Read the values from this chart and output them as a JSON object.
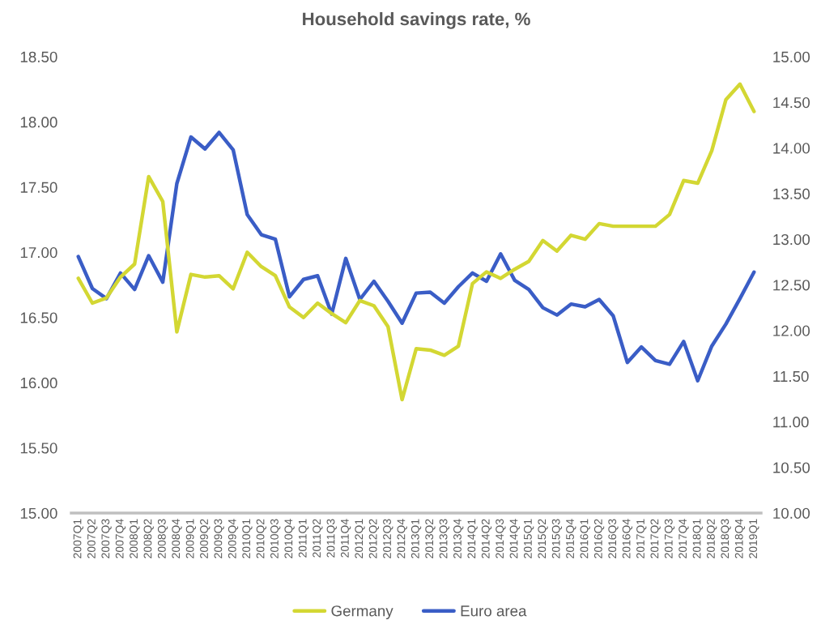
{
  "chart_data": {
    "type": "line",
    "title": "Household savings rate, %",
    "categories": [
      "2007Q1",
      "2007Q2",
      "2007Q3",
      "2007Q4",
      "2008Q1",
      "2008Q2",
      "2008Q3",
      "2008Q4",
      "2009Q1",
      "2009Q2",
      "2009Q3",
      "2009Q4",
      "2010Q1",
      "2010Q2",
      "2010Q3",
      "2010Q4",
      "2011Q1",
      "2011Q2",
      "2011Q3",
      "2011Q4",
      "2012Q1",
      "2012Q2",
      "2012Q3",
      "2012Q4",
      "2013Q1",
      "2013Q2",
      "2013Q3",
      "2013Q4",
      "2014Q1",
      "2014Q2",
      "2014Q3",
      "2014Q4",
      "2015Q1",
      "2015Q2",
      "2015Q3",
      "2015Q4",
      "2016Q1",
      "2016Q2",
      "2016Q3",
      "2016Q4",
      "2017Q1",
      "2017Q2",
      "2017Q3",
      "2017Q4",
      "2018Q1",
      "2018Q2",
      "2018Q3",
      "2018Q4",
      "2019Q1"
    ],
    "series": [
      {
        "name": "Germany",
        "color": "#d3d733",
        "values": [
          16.8,
          16.61,
          16.65,
          16.81,
          16.91,
          17.58,
          17.39,
          16.39,
          16.83,
          16.81,
          16.82,
          16.72,
          17.0,
          16.89,
          16.82,
          16.58,
          16.5,
          16.61,
          16.53,
          16.46,
          16.63,
          16.59,
          16.43,
          15.87,
          16.26,
          16.25,
          16.21,
          16.28,
          16.76,
          16.85,
          16.8,
          16.87,
          16.93,
          17.09,
          17.01,
          17.13,
          17.1,
          17.22,
          17.2,
          17.2,
          17.2,
          17.2,
          17.29,
          17.55,
          17.53,
          17.78,
          18.17,
          18.29,
          18.08
        ]
      },
      {
        "name": "Euro area",
        "color": "#3a5dc6",
        "axis": "y2",
        "values": [
          12.81,
          12.46,
          12.35,
          12.63,
          12.45,
          12.82,
          12.53,
          13.61,
          14.12,
          13.99,
          14.17,
          13.98,
          13.27,
          13.05,
          13.0,
          12.37,
          12.56,
          12.6,
          12.18,
          12.79,
          12.34,
          12.54,
          12.32,
          12.08,
          12.41,
          12.42,
          12.3,
          12.48,
          12.63,
          12.54,
          12.84,
          12.55,
          12.45,
          12.25,
          12.17,
          12.29,
          12.26,
          12.34,
          12.16,
          11.65,
          11.82,
          11.67,
          11.63,
          11.88,
          11.45,
          11.83,
          12.07,
          12.35,
          12.64
        ]
      }
    ],
    "ylim": [
      15,
      18.5
    ],
    "yticks": [
      {
        "value": 15,
        "label": "15.00"
      },
      {
        "value": 15.5,
        "label": "15.50"
      },
      {
        "value": 16,
        "label": "16.00"
      },
      {
        "value": 16.5,
        "label": "16.50"
      },
      {
        "value": 17,
        "label": "17.00"
      },
      {
        "value": 17.5,
        "label": "17.50"
      },
      {
        "value": 18,
        "label": "18.00"
      },
      {
        "value": 18.5,
        "label": "18.50"
      }
    ],
    "y2lim": [
      10,
      15
    ],
    "y2ticks": [
      {
        "value": 10,
        "label": "10.00"
      },
      {
        "value": 10.5,
        "label": "10.50"
      },
      {
        "value": 11,
        "label": "11.00"
      },
      {
        "value": 11.5,
        "label": "11.50"
      },
      {
        "value": 12,
        "label": "12.00"
      },
      {
        "value": 12.5,
        "label": "12.50"
      },
      {
        "value": 13,
        "label": "13.00"
      },
      {
        "value": 13.5,
        "label": "13.50"
      },
      {
        "value": 14,
        "label": "14.00"
      },
      {
        "value": 14.5,
        "label": "14.50"
      },
      {
        "value": 15,
        "label": "15.00"
      }
    ],
    "legend": "bottom",
    "grid": false,
    "line_style": "solid"
  }
}
